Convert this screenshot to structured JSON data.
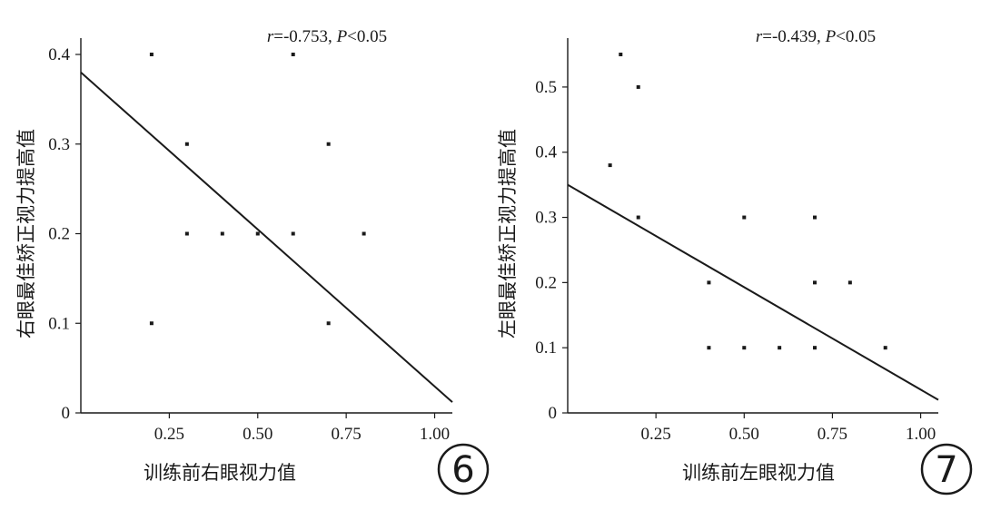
{
  "chart_data": [
    {
      "type": "scatter",
      "panel_label": "6",
      "annotation": {
        "r_symbol": "r",
        "r_value": "=-0.753, ",
        "p_symbol": "P",
        "p_value": "<0.05"
      },
      "xlabel": "训练前右眼视力值",
      "ylabel": "右眼最佳矫正视力提高值",
      "xlim": [
        0,
        1.05
      ],
      "ylim": [
        0,
        0.4
      ],
      "x_ticks": [
        {
          "value": 0.25,
          "label": "0.25"
        },
        {
          "value": 0.5,
          "label": "0.50"
        },
        {
          "value": 0.75,
          "label": "0.75"
        },
        {
          "value": 1.0,
          "label": "1.00"
        }
      ],
      "y_ticks": [
        {
          "value": 0,
          "label": "0"
        },
        {
          "value": 0.1,
          "label": "0.1"
        },
        {
          "value": 0.2,
          "label": "0.2"
        },
        {
          "value": 0.3,
          "label": "0.3"
        },
        {
          "value": 0.4,
          "label": "0.4"
        }
      ],
      "points": [
        {
          "x": 0.2,
          "y": 0.4
        },
        {
          "x": 0.6,
          "y": 0.4
        },
        {
          "x": 0.3,
          "y": 0.3
        },
        {
          "x": 0.7,
          "y": 0.3
        },
        {
          "x": 0.3,
          "y": 0.2
        },
        {
          "x": 0.4,
          "y": 0.2
        },
        {
          "x": 0.5,
          "y": 0.2
        },
        {
          "x": 0.6,
          "y": 0.2
        },
        {
          "x": 0.8,
          "y": 0.2
        },
        {
          "x": 0.2,
          "y": 0.1
        },
        {
          "x": 0.7,
          "y": 0.1
        }
      ],
      "fit_line": {
        "x1": 0,
        "y1": 0.38,
        "x2": 1.05,
        "y2": 0.012
      },
      "grid": false,
      "legend": "none"
    },
    {
      "type": "scatter",
      "panel_label": "7",
      "annotation": {
        "r_symbol": "r",
        "r_value": "=-0.439, ",
        "p_symbol": "P",
        "p_value": "<0.05"
      },
      "xlabel": "训练前左眼视力值",
      "ylabel": "左眼最佳矫正视力提高值",
      "xlim": [
        0,
        1.05
      ],
      "ylim": [
        0,
        0.55
      ],
      "x_ticks": [
        {
          "value": 0.25,
          "label": "0.25"
        },
        {
          "value": 0.5,
          "label": "0.50"
        },
        {
          "value": 0.75,
          "label": "0.75"
        },
        {
          "value": 1.0,
          "label": "1.00"
        }
      ],
      "y_ticks": [
        {
          "value": 0,
          "label": "0"
        },
        {
          "value": 0.1,
          "label": "0.1"
        },
        {
          "value": 0.2,
          "label": "0.2"
        },
        {
          "value": 0.3,
          "label": "0.3"
        },
        {
          "value": 0.4,
          "label": "0.4"
        },
        {
          "value": 0.5,
          "label": "0.5"
        }
      ],
      "points": [
        {
          "x": 0.15,
          "y": 0.55
        },
        {
          "x": 0.2,
          "y": 0.5
        },
        {
          "x": 0.12,
          "y": 0.38
        },
        {
          "x": 0.2,
          "y": 0.3
        },
        {
          "x": 0.5,
          "y": 0.3
        },
        {
          "x": 0.7,
          "y": 0.3
        },
        {
          "x": 0.4,
          "y": 0.2
        },
        {
          "x": 0.7,
          "y": 0.2
        },
        {
          "x": 0.8,
          "y": 0.2
        },
        {
          "x": 0.4,
          "y": 0.1
        },
        {
          "x": 0.5,
          "y": 0.1
        },
        {
          "x": 0.6,
          "y": 0.1
        },
        {
          "x": 0.7,
          "y": 0.1
        },
        {
          "x": 0.9,
          "y": 0.1
        }
      ],
      "fit_line": {
        "x1": 0,
        "y1": 0.35,
        "x2": 1.05,
        "y2": 0.02
      },
      "grid": false,
      "legend": "none"
    }
  ]
}
